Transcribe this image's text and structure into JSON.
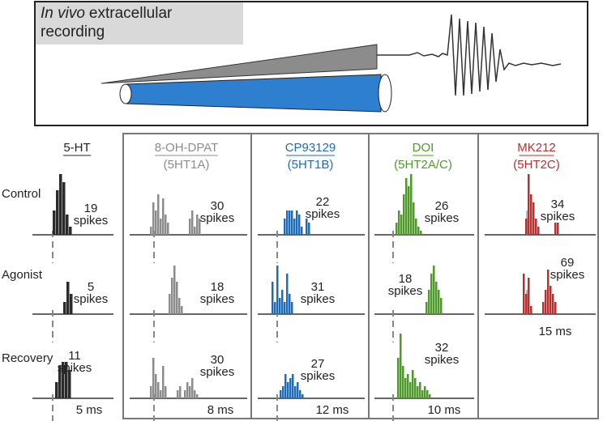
{
  "header": {
    "italic": "In vivo",
    "line1": "extracellular",
    "line2": "recording"
  },
  "rows": [
    "Control",
    "Agonist",
    "Recovery"
  ],
  "spikes_word": "spikes",
  "columns": [
    {
      "name": "5-HT",
      "color": "#2b2b2b",
      "scale": "5 ms",
      "bin_width": 4,
      "cells": [
        {
          "count": 19,
          "hist": [
            6,
            11,
            15,
            13,
            5,
            2
          ]
        },
        {
          "count": 5,
          "hist": [
            3,
            8,
            5
          ]
        },
        {
          "count": 11,
          "hist": [
            4,
            8,
            9,
            9,
            7
          ]
        }
      ]
    },
    {
      "name": "8-OH-DPAT",
      "receptor": "(5HT1A)",
      "color": "#8c8c8c",
      "scale": "8 ms",
      "bin_width": 3,
      "cells": [
        {
          "count": 30,
          "hist": [
            2,
            8,
            6,
            10,
            4,
            9,
            5,
            3,
            0,
            0,
            0,
            0,
            0,
            0,
            0,
            0,
            4,
            6,
            2,
            5,
            4
          ]
        },
        {
          "count": 18,
          "hist": [
            0,
            0,
            0,
            0,
            0,
            0,
            5,
            9,
            12,
            8,
            4,
            2
          ]
        },
        {
          "count": 30,
          "hist": [
            3,
            10,
            6,
            4,
            2,
            8,
            3,
            0,
            0,
            0,
            0,
            2,
            3,
            0,
            2,
            4,
            3,
            5,
            2,
            1
          ]
        }
      ]
    },
    {
      "name": "CP93129",
      "receptor": "(5HT1B)",
      "color": "#1e6bb8",
      "scale": "12 ms",
      "bin_width": 3,
      "cells": [
        {
          "count": 22,
          "hist": [
            4,
            6,
            6,
            6,
            4,
            6,
            5,
            2,
            0,
            4,
            3
          ]
        },
        {
          "count": 31,
          "hist": [
            8,
            3,
            12,
            4,
            6,
            3,
            10,
            5,
            3
          ]
        },
        {
          "count": 27,
          "hist": [
            2,
            3,
            6,
            4,
            5,
            6,
            3,
            4,
            2,
            1
          ]
        }
      ]
    },
    {
      "name": "DOI",
      "receptor": "(5HT2A/C)",
      "color": "#4d9a2a",
      "scale": "10 ms",
      "bin_width": 3,
      "cells": [
        {
          "count": 26,
          "hist": [
            3,
            6,
            5,
            10,
            14,
            12,
            15,
            8,
            4,
            2,
            1
          ]
        },
        {
          "count": 18,
          "hist": [
            3,
            6,
            10,
            12,
            8,
            6,
            4
          ]
        },
        {
          "count": 32,
          "hist": [
            10,
            16,
            8,
            5,
            6,
            4,
            7,
            5,
            3,
            4,
            2,
            3,
            2,
            1
          ]
        }
      ]
    },
    {
      "name": "MK212",
      "receptor": "(5HT2C)",
      "color": "#b5302f",
      "scale": "15 ms",
      "bin_width": 3,
      "cells": [
        {
          "count": 34,
          "hist": [
            4,
            15,
            10,
            8,
            4,
            2,
            0,
            0,
            0,
            0,
            0,
            0,
            3,
            3
          ]
        },
        {
          "count": 69,
          "hist": [
            10,
            5,
            9,
            2,
            0,
            0,
            0,
            0,
            3,
            6,
            11,
            7,
            5,
            3
          ]
        }
      ]
    }
  ]
}
